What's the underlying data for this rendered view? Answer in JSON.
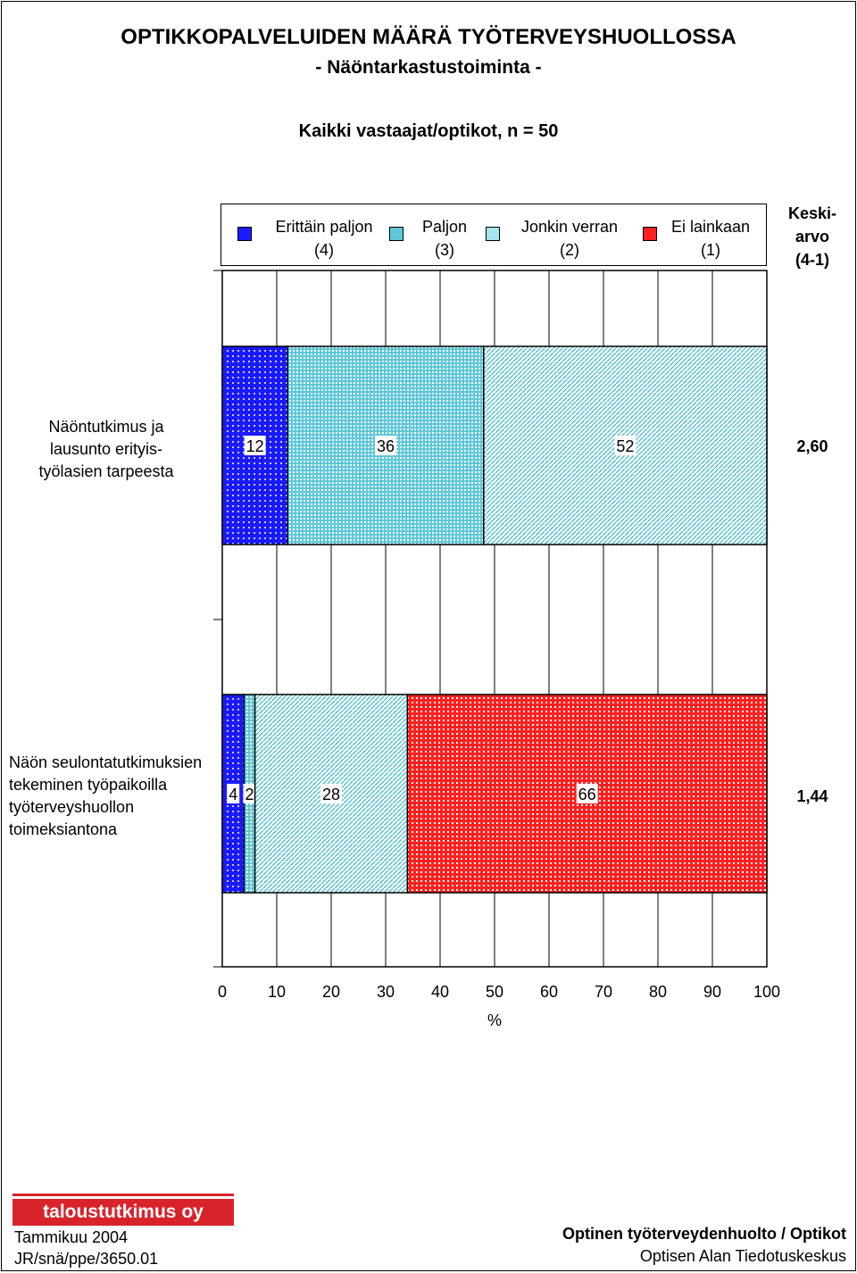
{
  "header": {
    "title": "OPTIKKOPALVELUIDEN MÄÄRÄ TYÖTERVEYSHUOLLOSSA",
    "subtitle": "- Näöntarkastustoiminta -",
    "sample": "Kaikki vastaajat/optikot, n = 50"
  },
  "legend": [
    {
      "line1": "Erittäin paljon",
      "line2": "(4)",
      "color": "#1a1aff"
    },
    {
      "line1": "Paljon",
      "line2": "(3)",
      "color": "#5fc8d8"
    },
    {
      "line1": "Jonkin verran",
      "line2": "(2)",
      "color": "#a6e4ee"
    },
    {
      "line1": "Ei lainkaan",
      "line2": "(1)",
      "color": "#ff2020"
    }
  ],
  "mean_header": {
    "line1": "Keski-",
    "line2": "arvo",
    "line3": "(4-1)"
  },
  "chart_data": {
    "type": "bar",
    "orientation": "horizontal",
    "stacked": true,
    "xlabel": "%",
    "xlim": [
      0,
      100
    ],
    "xticks": [
      "0",
      "10",
      "20",
      "30",
      "40",
      "50",
      "60",
      "70",
      "80",
      "90",
      "100"
    ],
    "grid": true,
    "categories": [
      "Näöntutkimus ja lausunto erityis-työlasien tarpeesta",
      "Näön seulontatutkimuksien tekeminen työpaikoilla työterveyshuollon toimeksiantona"
    ],
    "series": [
      {
        "name": "Erittäin paljon (4)",
        "values": [
          12,
          4
        ],
        "labels": [
          "12",
          "4"
        ]
      },
      {
        "name": "Paljon (3)",
        "values": [
          36,
          2
        ],
        "labels": [
          "36",
          "2"
        ]
      },
      {
        "name": "Jonkin verran (2)",
        "values": [
          52,
          28
        ],
        "labels": [
          "52",
          "28"
        ]
      },
      {
        "name": "Ei lainkaan (1)",
        "values": [
          0,
          66
        ],
        "labels": [
          "",
          "66"
        ]
      }
    ],
    "means": [
      "2,60",
      "1,44"
    ]
  },
  "rows": [
    {
      "label_lines": [
        "Näöntutkimus ja",
        "lausunto erityis-",
        "työlasien tarpeesta"
      ],
      "mean": "2,60"
    },
    {
      "label_lines": [
        "Näön seulontatutkimuksien",
        "tekeminen työpaikoilla",
        "työterveyshuollon",
        "toimeksiantona"
      ],
      "mean": "1,44"
    }
  ],
  "footer": {
    "logo": "taloustutkimus oy",
    "date": "Tammikuu  2004",
    "code": "JR/snä/ppe/3650.01",
    "right_title": "Optinen työterveydenhuolto / Optikot",
    "right_sub": "Optisen  Alan Tiedotuskeskus"
  }
}
